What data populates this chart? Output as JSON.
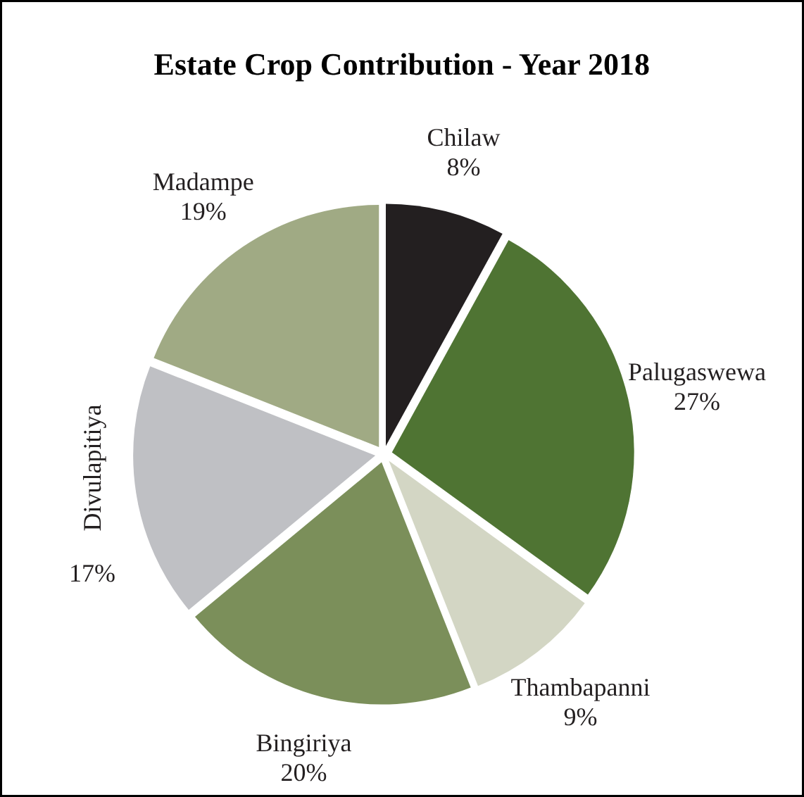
{
  "chart_data": {
    "type": "pie",
    "title": "Estate Crop Contribution - Year 2018",
    "categories": [
      "Chilaw",
      "Palugaswewa",
      "Thambapanni",
      "Bingiriya",
      "Divulapitiya",
      "Madampe"
    ],
    "values": [
      8,
      27,
      9,
      20,
      17,
      19
    ],
    "value_labels": [
      "8%",
      "27%",
      "9%",
      "20%",
      "17%",
      "19%"
    ],
    "colors": [
      "#231f20",
      "#4f7433",
      "#d3d6c4",
      "#7b8f5a",
      "#bfc0c4",
      "#a0aa84"
    ]
  }
}
